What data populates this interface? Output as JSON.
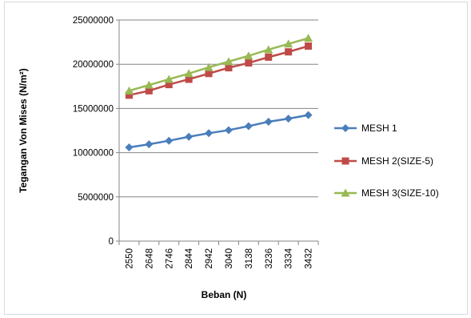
{
  "chart_data": {
    "type": "line",
    "title": "",
    "xlabel": "Beban (N)",
    "ylabel": "Tegangan Von Mises (N/m²)",
    "categories": [
      "2550",
      "2648",
      "2746",
      "2844",
      "2942",
      "3040",
      "3138",
      "3236",
      "3334",
      "3432"
    ],
    "yticks": [
      "0",
      "5000000",
      "10000000",
      "15000000",
      "20000000",
      "25000000"
    ],
    "ylim": [
      0,
      25000000
    ],
    "grid": "horizontal",
    "legend_position": "right",
    "series": [
      {
        "name": "MESH 1",
        "color": "#4a7ebb",
        "marker": "diamond",
        "values": [
          10600000,
          10950000,
          11350000,
          11800000,
          12200000,
          12550000,
          13000000,
          13500000,
          13850000,
          14250000
        ]
      },
      {
        "name": "MESH 2(SIZE-5)",
        "color": "#be4b48",
        "marker": "square",
        "values": [
          16500000,
          17000000,
          17700000,
          18300000,
          18950000,
          19600000,
          20150000,
          20800000,
          21400000,
          22050000
        ]
      },
      {
        "name": "MESH 3(SIZE-10)",
        "color": "#98b954",
        "marker": "triangle",
        "values": [
          17000000,
          17650000,
          18300000,
          18950000,
          19650000,
          20300000,
          20950000,
          21650000,
          22300000,
          22950000
        ]
      }
    ]
  }
}
